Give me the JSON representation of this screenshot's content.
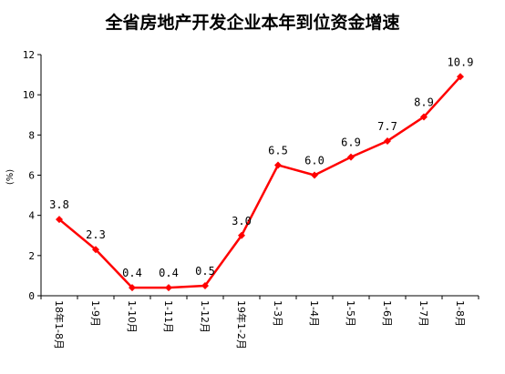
{
  "chart_data": {
    "type": "line",
    "title": "全省房地产开发企业本年到位资金增速",
    "ylabel": "(%)",
    "xlabel": "",
    "ylim": [
      0,
      12
    ],
    "yticks": [
      0,
      2,
      4,
      6,
      8,
      10,
      12
    ],
    "grid": false,
    "legend": "none",
    "categories": [
      "18年1-8月",
      "1-9月",
      "1-10月",
      "1-11月",
      "1-12月",
      "19年1-2月",
      "1-3月",
      "1-4月",
      "1-5月",
      "1-6月",
      "1-7月",
      "1-8月"
    ],
    "series": [
      {
        "values": [
          3.8,
          2.3,
          0.4,
          0.4,
          0.5,
          3.0,
          6.5,
          6.0,
          6.9,
          7.7,
          8.9,
          10.9
        ],
        "labels": [
          "3.8",
          "2.3",
          "0.4",
          "0.4",
          "0.5",
          "3.0",
          "6.5",
          "6.0",
          "6.9",
          "7.7",
          "8.9",
          "10.9"
        ],
        "color": "#ff0000"
      }
    ]
  }
}
